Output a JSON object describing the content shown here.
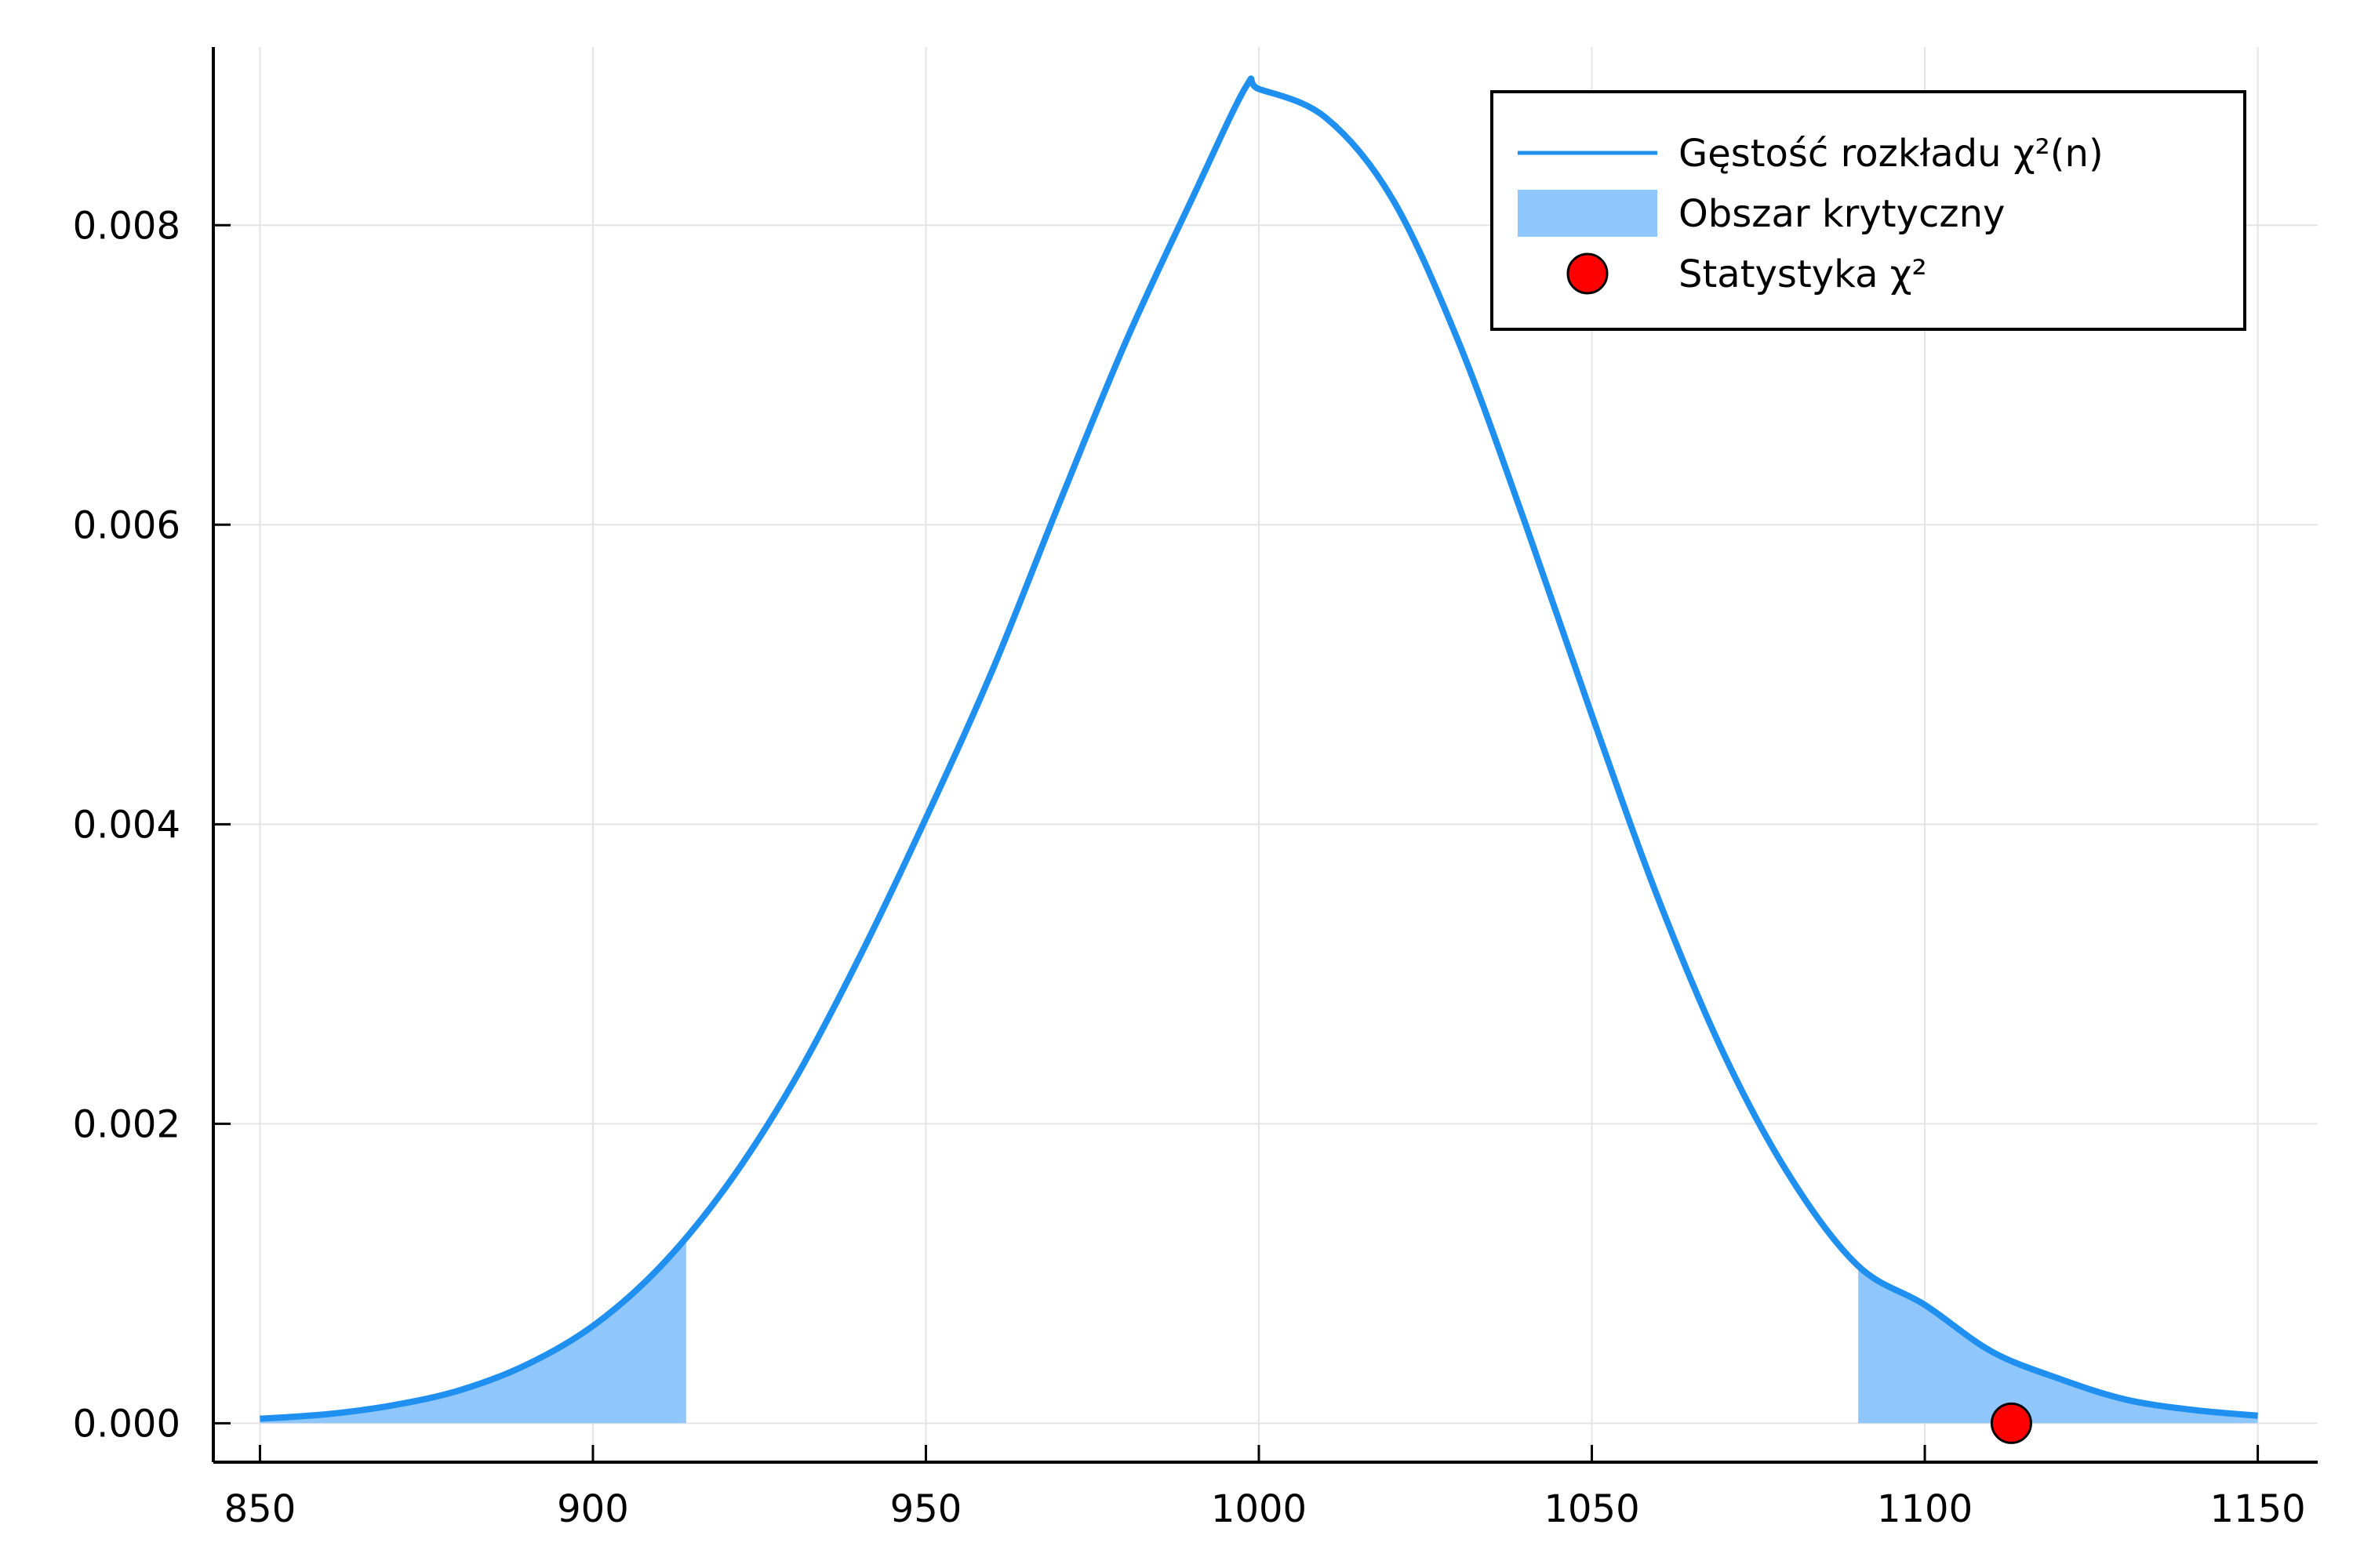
{
  "chart_data": {
    "type": "line",
    "title": "",
    "xlabel": "",
    "ylabel": "",
    "xlim": [
      843,
      1159
    ],
    "ylim": [
      -0.00026,
      0.00919
    ],
    "x_ticks": [
      850,
      900,
      950,
      1000,
      1050,
      1100,
      1150
    ],
    "x_tick_labels": [
      "850",
      "900",
      "950",
      "1000",
      "1050",
      "1100",
      "1150"
    ],
    "y_ticks": [
      0,
      0.002,
      0.004,
      0.006,
      0.008
    ],
    "y_tick_labels": [
      "0.000",
      "0.002",
      "0.004",
      "0.006",
      "0.008"
    ],
    "grid": true,
    "legend_position": "top-right",
    "series": [
      {
        "name": "Gęstość rozkładu χ²(n)",
        "kind": "line",
        "color": "#1f8ff0",
        "x": [
          850,
          860,
          870,
          880,
          890,
          900,
          910,
          920,
          930,
          940,
          950,
          960,
          970,
          980,
          990,
          998,
          1000,
          1010,
          1020,
          1030,
          1040,
          1050,
          1060,
          1070,
          1080,
          1090,
          1100,
          1110,
          1120,
          1130,
          1140,
          1150
        ],
        "y": [
          3e-05,
          6e-05,
          0.00012,
          0.00022,
          0.00039,
          0.00065,
          0.00104,
          0.00158,
          0.00227,
          0.00311,
          0.00404,
          0.00503,
          0.00614,
          0.00722,
          0.00818,
          0.00892,
          0.00891,
          0.00872,
          0.00818,
          0.00722,
          0.00601,
          0.00473,
          0.0035,
          0.00245,
          0.00163,
          0.00105,
          0.00079,
          0.00048,
          0.0003,
          0.00016,
          9e-05,
          5e-05
        ]
      },
      {
        "name": "Obszar krytyczny",
        "kind": "area",
        "color": "#8fc6fb",
        "x_ranges": [
          [
            850,
            914
          ],
          [
            1090,
            1150
          ]
        ]
      },
      {
        "name": "Statystyka χ²",
        "kind": "scatter",
        "color": "#ff0000",
        "x": [
          1113
        ],
        "y": [
          0
        ]
      }
    ]
  }
}
